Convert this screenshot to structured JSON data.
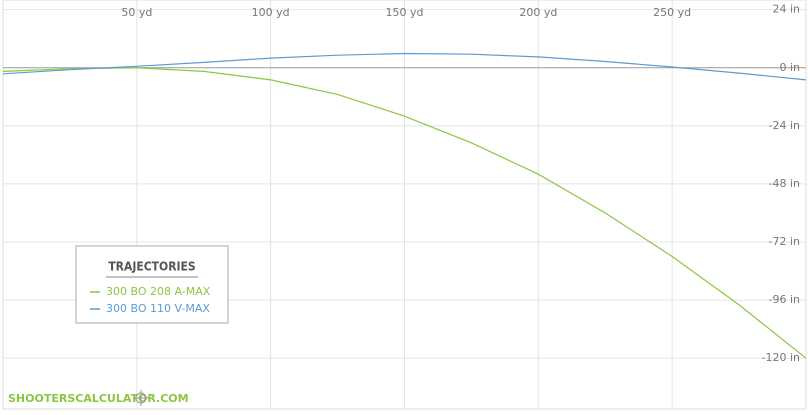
{
  "chart_data": {
    "type": "line",
    "x": [
      0,
      25,
      50,
      75,
      100,
      125,
      150,
      175,
      200,
      225,
      250,
      275,
      300
    ],
    "series": [
      {
        "name": "300 BO 208 A-MAX",
        "color": "#8cc63f",
        "values": [
          -1.5,
          -0.4,
          0,
          -1.5,
          -5,
          -11,
          -20,
          -31,
          -44,
          -60,
          -78,
          -98,
          -120
        ]
      },
      {
        "name": "300 BO 110 V-MAX",
        "color": "#5b9bd5",
        "values": [
          -2.5,
          -0.8,
          0.6,
          2.2,
          4,
          5.2,
          5.9,
          5.6,
          4.5,
          2.6,
          0.3,
          -2.2,
          -5
        ]
      }
    ],
    "xlim": [
      0,
      300
    ],
    "xticks": [
      {
        "value": 50,
        "label": "50 yd"
      },
      {
        "value": 100,
        "label": "100 yd"
      },
      {
        "value": 150,
        "label": "150 yd"
      },
      {
        "value": 200,
        "label": "200 yd"
      },
      {
        "value": 250,
        "label": "250 yd"
      }
    ],
    "ylim": [
      -141,
      28
    ],
    "yticks": [
      {
        "value": 24,
        "label": "24 in"
      },
      {
        "value": 0,
        "label": "0 in"
      },
      {
        "value": -24,
        "label": "-24 in"
      },
      {
        "value": -48,
        "label": "-48 in"
      },
      {
        "value": -72,
        "label": "-72 in"
      },
      {
        "value": -96,
        "label": "-96 in"
      },
      {
        "value": -120,
        "label": "-120 in"
      }
    ],
    "grid": true,
    "legend_title": "TRAJECTORIES",
    "watermark": "SHOOTERSCALCULATOR.COM"
  }
}
